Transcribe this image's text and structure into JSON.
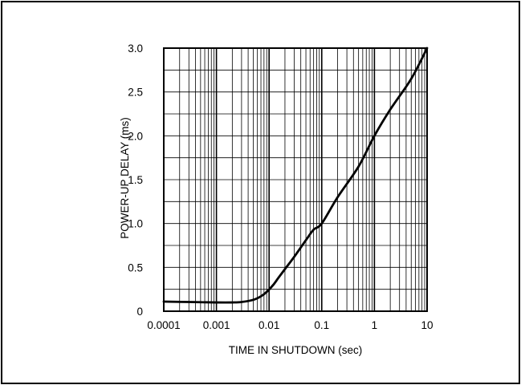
{
  "chart_data": {
    "type": "line",
    "title": "",
    "xlabel": "TIME IN SHUTDOWN (sec)",
    "ylabel": "POWER-UP DELAY (ms)",
    "x_scale": "log",
    "xlim": [
      0.0001,
      10
    ],
    "ylim": [
      0,
      3.0
    ],
    "x_ticks": [
      "0.0001",
      "0.001",
      "0.01",
      "0.1",
      "1",
      "10"
    ],
    "y_ticks": [
      "0",
      "0.5",
      "1.0",
      "1.5",
      "2.0",
      "2.5",
      "3.0"
    ],
    "grid": true,
    "legend": "none",
    "line_color": "#000000",
    "series": [
      {
        "x": [
          0.0001,
          0.0003,
          0.001,
          0.002,
          0.003,
          0.005,
          0.007,
          0.009,
          0.012,
          0.015,
          0.02,
          0.03,
          0.05,
          0.07,
          0.1,
          0.2,
          0.5,
          1,
          2,
          5,
          10
        ],
        "y": [
          0.11,
          0.105,
          0.1,
          0.1,
          0.105,
          0.13,
          0.17,
          0.22,
          0.3,
          0.38,
          0.48,
          0.62,
          0.81,
          0.93,
          1.0,
          1.3,
          1.65,
          2.0,
          2.3,
          2.65,
          3.0
        ]
      }
    ]
  }
}
